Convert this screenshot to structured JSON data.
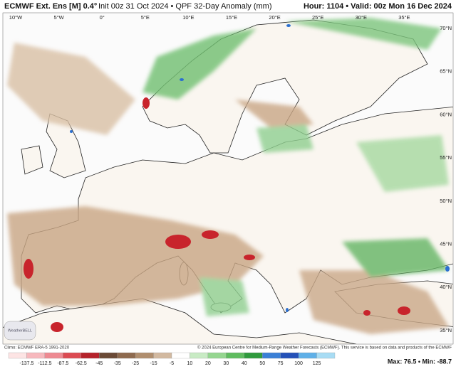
{
  "header": {
    "model": "ECMWF Ext. Ens [M] 0.4°",
    "run": "Init 00z 31 Oct 2024 • QPF 32-Day Anomaly (mm)",
    "valid": "Hour: 1104 • Valid: 00z Mon 16 Dec 2024"
  },
  "map": {
    "longitudes": [
      "10°W",
      "5°W",
      "0°",
      "5°E",
      "10°E",
      "15°E",
      "20°E",
      "25°E",
      "30°E",
      "35°E"
    ],
    "latitudes": [
      "70°N",
      "65°N",
      "60°N",
      "55°N",
      "50°N",
      "45°N",
      "40°N",
      "35°N"
    ]
  },
  "logo": "WeatherBELL",
  "footer": {
    "climo": "Climo: ECMWF ERA-5 1991-2020",
    "copyright": "© 2024 European Centre for Medium-Range Weather Forecasts (ECMWF). This service is based on data and products of the ECMWF",
    "maxmin": "Max: 76.5 • Min: -88.7"
  },
  "colorbar": {
    "labels": [
      "-137.5",
      "-112.5",
      "-87.5",
      "-62.5",
      "-45",
      "-35",
      "-25",
      "-15",
      "-5",
      "10",
      "20",
      "30",
      "40",
      "50",
      "75",
      "100",
      "125"
    ],
    "colors": [
      "#fde4e4",
      "#f7b8bd",
      "#ee8a92",
      "#dc4a52",
      "#b5222a",
      "#6b4a36",
      "#8e6a4e",
      "#b08e6e",
      "#d2b9a0",
      "#ffffff",
      "#c8ebc4",
      "#95d690",
      "#5fbc5f",
      "#2f9a3d",
      "#3a7fd6",
      "#2451b8",
      "#5fb0e8",
      "#a8dcf4"
    ]
  }
}
